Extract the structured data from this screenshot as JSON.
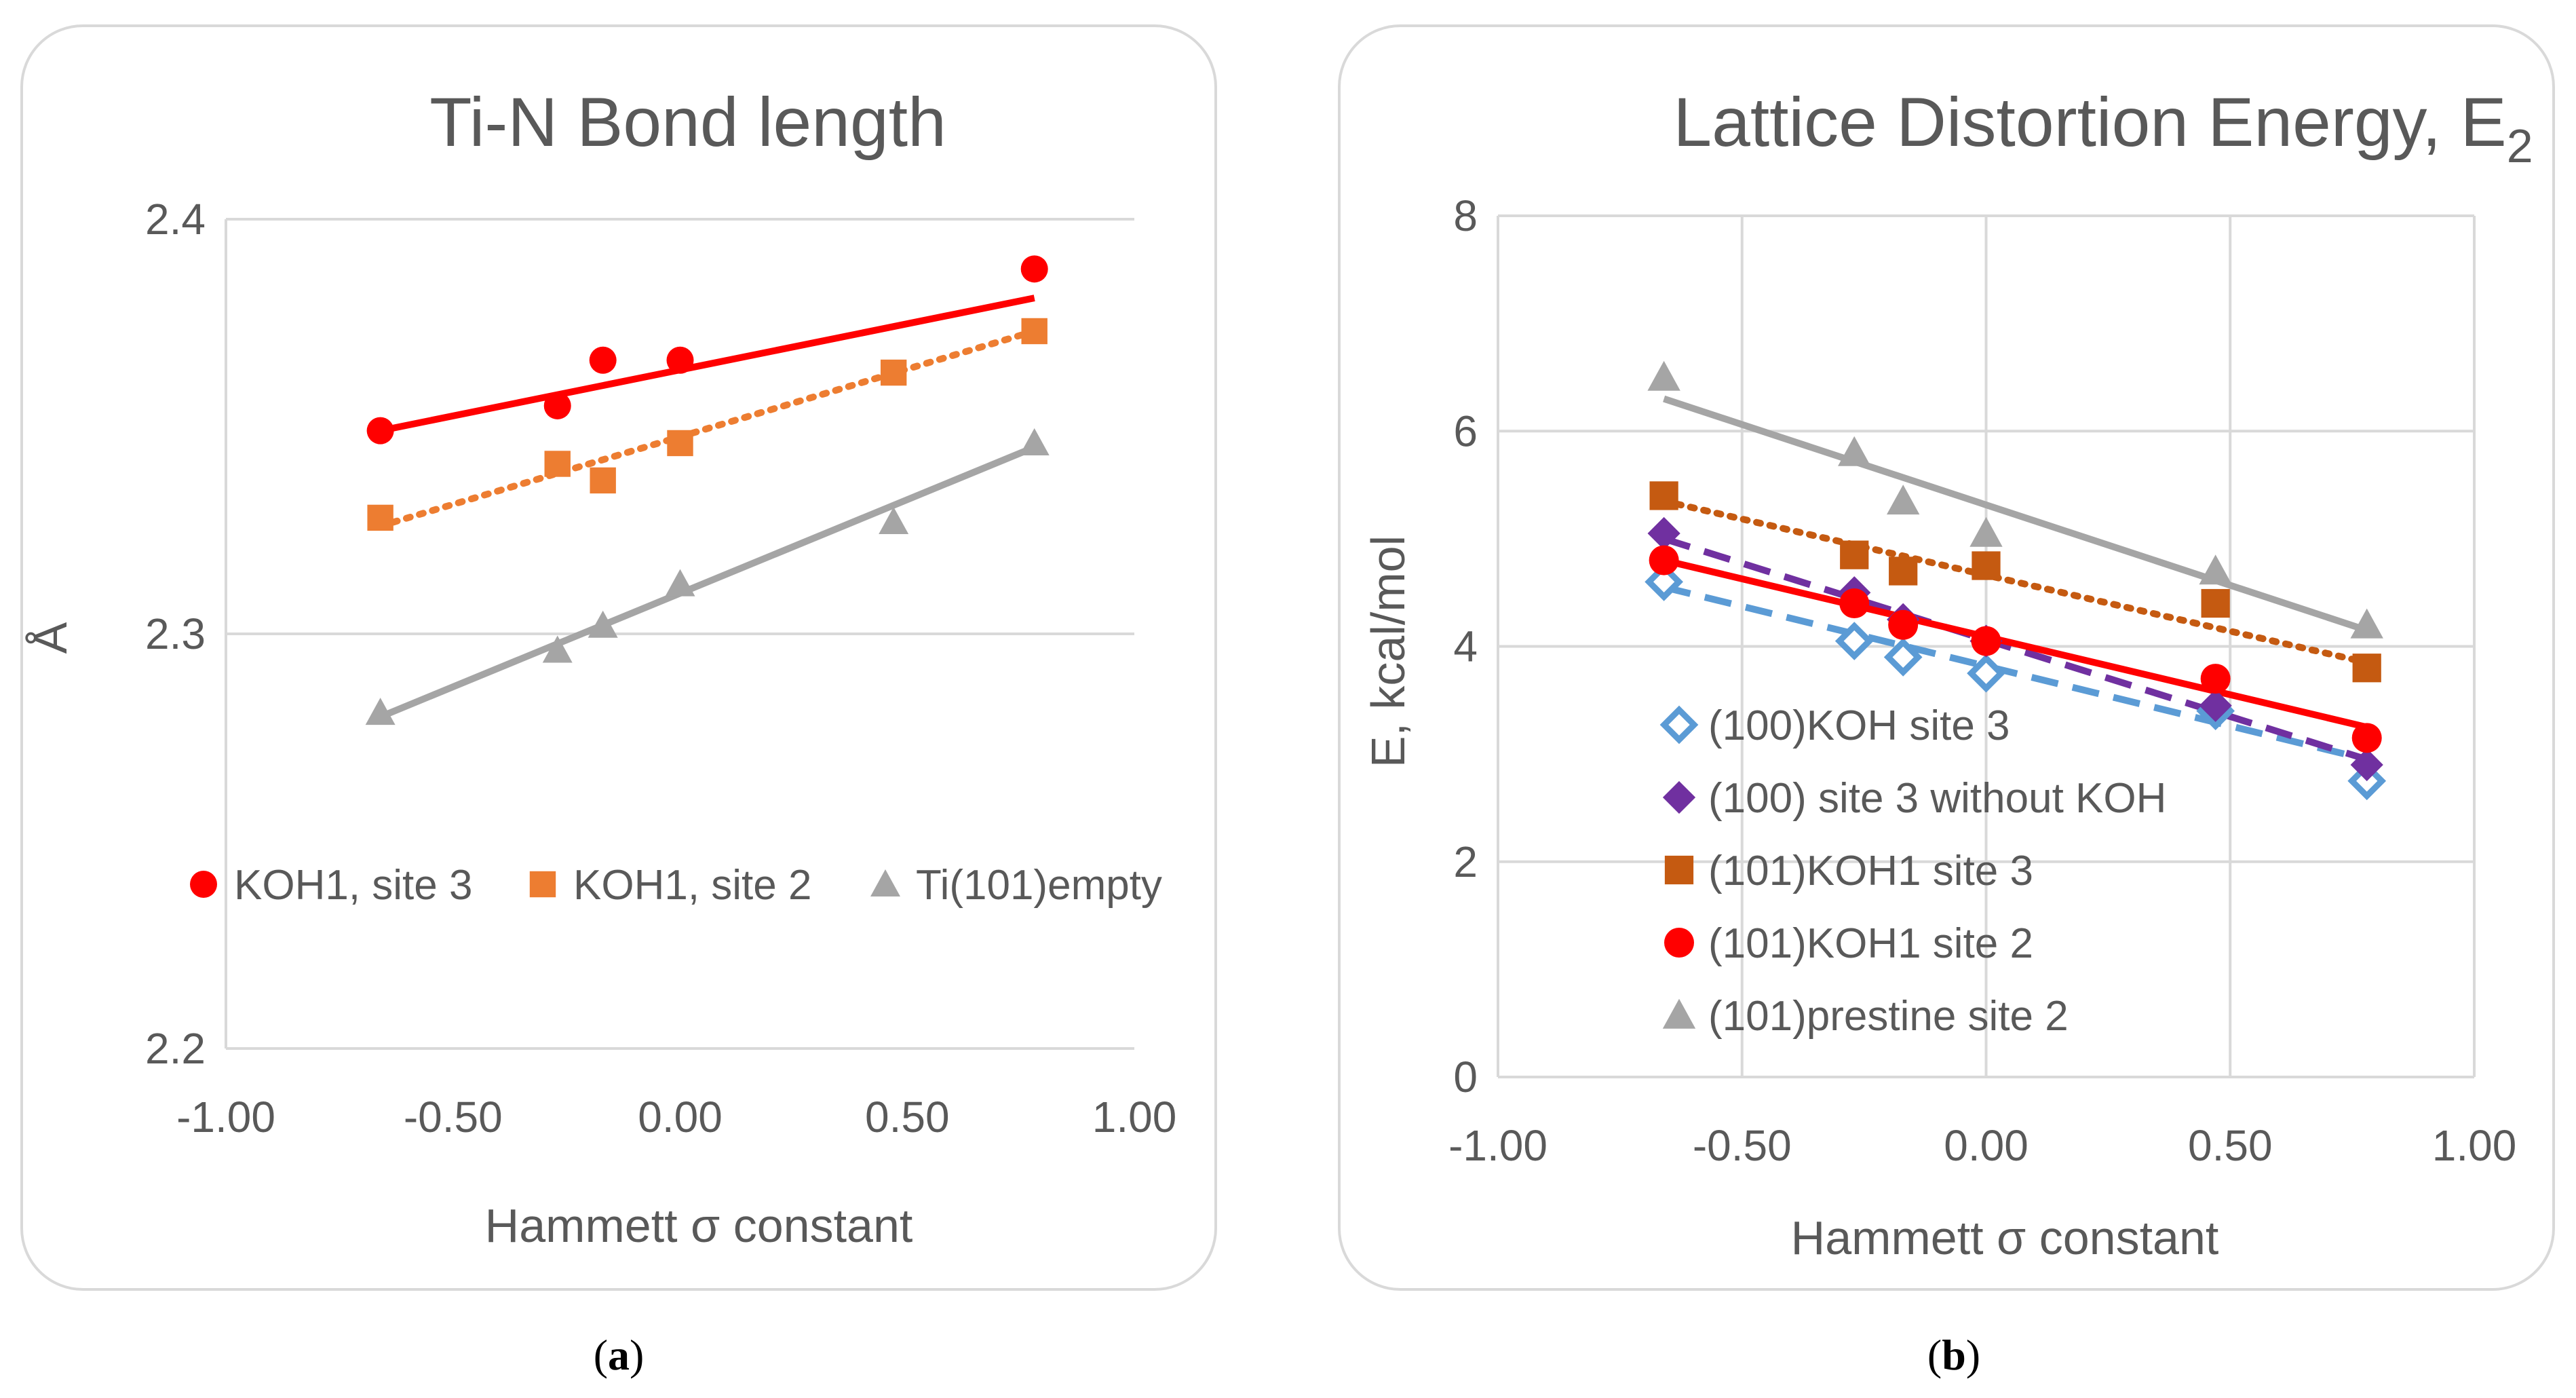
{
  "colors": {
    "red": "#ff0000",
    "orange": "#ed7d31",
    "gray": "#a5a5a5",
    "blue": "#5b9bd5",
    "purple": "#7030a0",
    "brown": "#c55a11"
  },
  "chart_data": [
    {
      "id": "a",
      "type": "scatter",
      "title": "Ti-N Bond length",
      "xlabel": "Hammett σ constant",
      "ylabel": "Å",
      "xlim": [
        -1.0,
        1.0
      ],
      "ylim": [
        2.2,
        2.4
      ],
      "xticks": [
        -1.0,
        -0.5,
        0.0,
        0.5,
        1.0
      ],
      "xtick_labels": [
        "-1.00",
        "-0.50",
        "0.00",
        "0.50",
        "1.00"
      ],
      "yticks": [
        2.2,
        2.3,
        2.4
      ],
      "ytick_labels": [
        "2.2",
        "2.3",
        "2.4"
      ],
      "grid": "horizontal",
      "legend_position": "lower-center",
      "caption": "a",
      "series": [
        {
          "name": "KOH1, site 3",
          "color": "red",
          "marker": "circle",
          "line": "solid",
          "x": [
            -0.66,
            -0.27,
            -0.17,
            0.0,
            0.78
          ],
          "y": [
            2.349,
            2.355,
            2.366,
            2.366,
            2.388
          ],
          "trend": [
            [
              -0.66,
              2.349
            ],
            [
              0.78,
              2.381
            ]
          ]
        },
        {
          "name": "KOH1, site 2",
          "color": "orange",
          "marker": "square",
          "line": "dotted",
          "x": [
            -0.66,
            -0.27,
            -0.17,
            0.0,
            0.47,
            0.78
          ],
          "y": [
            2.328,
            2.341,
            2.337,
            2.346,
            2.363,
            2.373
          ],
          "trend": [
            [
              -0.66,
              2.326
            ],
            [
              0.78,
              2.373
            ]
          ]
        },
        {
          "name": "Ti(101)empty",
          "color": "gray",
          "marker": "triangle",
          "line": "solid",
          "x": [
            -0.66,
            -0.27,
            -0.17,
            0.0,
            0.47,
            0.78
          ],
          "y": [
            2.281,
            2.296,
            2.302,
            2.312,
            2.327,
            2.346
          ],
          "trend": [
            [
              -0.66,
              2.28
            ],
            [
              0.78,
              2.345
            ]
          ]
        }
      ]
    },
    {
      "id": "b",
      "type": "scatter",
      "title": "Lattice Distortion Energy, E",
      "title_subscript": "2",
      "xlabel": "Hammett σ constant",
      "ylabel": "E, kcal/mol",
      "xlim": [
        -1.0,
        1.0
      ],
      "ylim": [
        0,
        8
      ],
      "xticks": [
        -1.0,
        -0.5,
        0.0,
        0.5,
        1.0
      ],
      "xtick_labels": [
        "-1.00",
        "-0.50",
        "0.00",
        "0.50",
        "1.00"
      ],
      "yticks": [
        0,
        2,
        4,
        6,
        8
      ],
      "ytick_labels": [
        "0",
        "2",
        "4",
        "6",
        "8"
      ],
      "grid": "both",
      "legend_position": "lower-left",
      "caption": "b",
      "series": [
        {
          "name": "(100)KOH site 3",
          "color": "blue",
          "marker": "diamond-open",
          "line": "dashed",
          "x": [
            -0.66,
            -0.27,
            -0.17,
            0.0,
            0.47,
            0.78
          ],
          "y": [
            4.6,
            4.05,
            3.9,
            3.75,
            3.4,
            2.75
          ],
          "trend": [
            [
              -0.66,
              4.55
            ],
            [
              0.78,
              2.95
            ]
          ]
        },
        {
          "name": "(100) site 3 without KOH",
          "color": "purple",
          "marker": "diamond",
          "line": "dashed",
          "x": [
            -0.66,
            -0.27,
            -0.17,
            0.0,
            0.47,
            0.78
          ],
          "y": [
            5.05,
            4.5,
            4.25,
            4.05,
            3.45,
            2.9
          ],
          "trend": [
            [
              -0.66,
              5.0
            ],
            [
              0.78,
              2.95
            ]
          ]
        },
        {
          "name": "(101)KOH1 site 3",
          "color": "brown",
          "marker": "square",
          "line": "dotted",
          "x": [
            -0.66,
            -0.27,
            -0.17,
            0.0,
            0.47,
            0.78
          ],
          "y": [
            5.4,
            4.85,
            4.7,
            4.75,
            4.4,
            3.8
          ],
          "trend": [
            [
              -0.66,
              5.35
            ],
            [
              0.78,
              3.85
            ]
          ]
        },
        {
          "name": "(101)KOH1 site 2",
          "color": "red",
          "marker": "circle",
          "line": "solid",
          "x": [
            -0.66,
            -0.27,
            -0.17,
            0.0,
            0.47,
            0.78
          ],
          "y": [
            4.8,
            4.4,
            4.2,
            4.05,
            3.7,
            3.15
          ],
          "trend": [
            [
              -0.66,
              4.8
            ],
            [
              0.78,
              3.25
            ]
          ]
        },
        {
          "name": "(101)prestine site 2",
          "color": "gray",
          "marker": "triangle",
          "line": "solid",
          "x": [
            -0.66,
            -0.27,
            -0.17,
            0.0,
            0.47,
            0.78
          ],
          "y": [
            6.5,
            5.8,
            5.35,
            5.05,
            4.7,
            4.2
          ],
          "trend": [
            [
              -0.66,
              6.3
            ],
            [
              0.78,
              4.15
            ]
          ]
        }
      ]
    }
  ]
}
